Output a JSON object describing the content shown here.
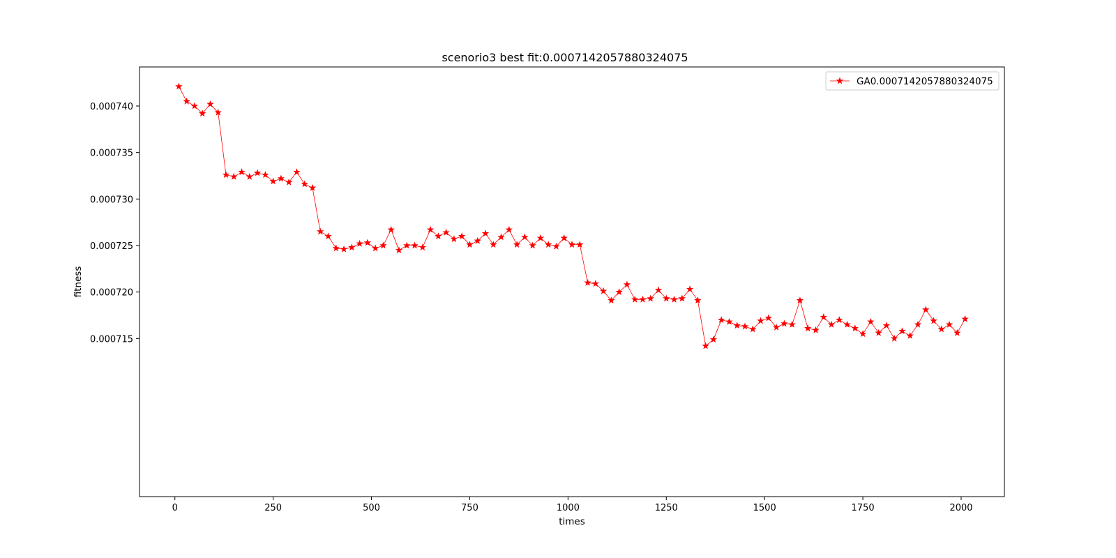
{
  "chart_data": {
    "type": "line",
    "title": "scenorio3 best fit:0.0007142057880324075",
    "xlabel": "times",
    "ylabel": "fitness",
    "xlim": [
      -90,
      2110
    ],
    "ylim": [
      0.000698,
      0.0007442
    ],
    "xticks": [
      0,
      250,
      500,
      750,
      1000,
      1250,
      1500,
      1750,
      2000
    ],
    "yticks": [
      0.000715,
      0.00072,
      0.000725,
      0.00073,
      0.000735,
      0.00074
    ],
    "xtick_labels": [
      "0",
      "250",
      "500",
      "750",
      "1000",
      "1250",
      "1500",
      "1750",
      "2000"
    ],
    "ytick_labels": [
      "0.000715",
      "0.000720",
      "0.000725",
      "0.000730",
      "0.000735",
      "0.000740"
    ],
    "grid": false,
    "legend_position": "top-right",
    "series": [
      {
        "name": "GA0.0007142057880324075",
        "color": "#ff0000",
        "marker": "star",
        "x": [
          10,
          30,
          50,
          70,
          90,
          110,
          130,
          150,
          170,
          190,
          210,
          230,
          250,
          270,
          290,
          310,
          330,
          350,
          370,
          390,
          410,
          430,
          450,
          470,
          490,
          510,
          530,
          550,
          570,
          590,
          610,
          630,
          650,
          670,
          690,
          710,
          730,
          750,
          770,
          790,
          810,
          830,
          850,
          870,
          890,
          910,
          930,
          950,
          970,
          990,
          1010,
          1030,
          1050,
          1070,
          1090,
          1110,
          1130,
          1150,
          1170,
          1190,
          1210,
          1230,
          1250,
          1270,
          1290,
          1310,
          1330,
          1350,
          1370,
          1390,
          1410,
          1430,
          1450,
          1470,
          1490,
          1510,
          1530,
          1550,
          1570,
          1590,
          1610,
          1630,
          1650,
          1670,
          1690,
          1710,
          1730,
          1750,
          1770,
          1790,
          1810,
          1830,
          1850,
          1870,
          1890,
          1910,
          1930,
          1950,
          1970,
          1990,
          2010
        ],
        "y": [
          0.0007421,
          0.0007405,
          0.00074,
          0.0007392,
          0.0007402,
          0.0007393,
          0.0007326,
          0.0007324,
          0.0007329,
          0.0007324,
          0.0007328,
          0.0007326,
          0.0007319,
          0.0007322,
          0.0007318,
          0.0007329,
          0.0007316,
          0.0007312,
          0.0007265,
          0.000726,
          0.0007247,
          0.0007246,
          0.0007248,
          0.0007252,
          0.0007253,
          0.0007247,
          0.000725,
          0.0007267,
          0.0007245,
          0.000725,
          0.000725,
          0.0007248,
          0.0007267,
          0.000726,
          0.0007264,
          0.0007257,
          0.000726,
          0.0007251,
          0.0007255,
          0.0007263,
          0.0007251,
          0.0007259,
          0.0007267,
          0.0007251,
          0.0007259,
          0.000725,
          0.0007258,
          0.0007251,
          0.0007249,
          0.0007258,
          0.0007251,
          0.0007251,
          0.000721,
          0.0007209,
          0.0007201,
          0.0007191,
          0.00072,
          0.0007208,
          0.0007192,
          0.0007192,
          0.0007193,
          0.0007202,
          0.0007193,
          0.0007192,
          0.0007193,
          0.0007203,
          0.0007191,
          0.0007142,
          0.0007149,
          0.000717,
          0.0007168,
          0.0007164,
          0.0007163,
          0.000716,
          0.0007169,
          0.0007172,
          0.0007162,
          0.0007166,
          0.0007165,
          0.0007191,
          0.0007161,
          0.0007159,
          0.0007173,
          0.0007165,
          0.000717,
          0.0007165,
          0.0007161,
          0.0007155,
          0.0007168,
          0.0007156,
          0.0007164,
          0.000715,
          0.0007158,
          0.0007153,
          0.0007165,
          0.0007181,
          0.0007169,
          0.000716,
          0.0007165,
          0.0007156,
          0.0007171
        ]
      }
    ]
  }
}
